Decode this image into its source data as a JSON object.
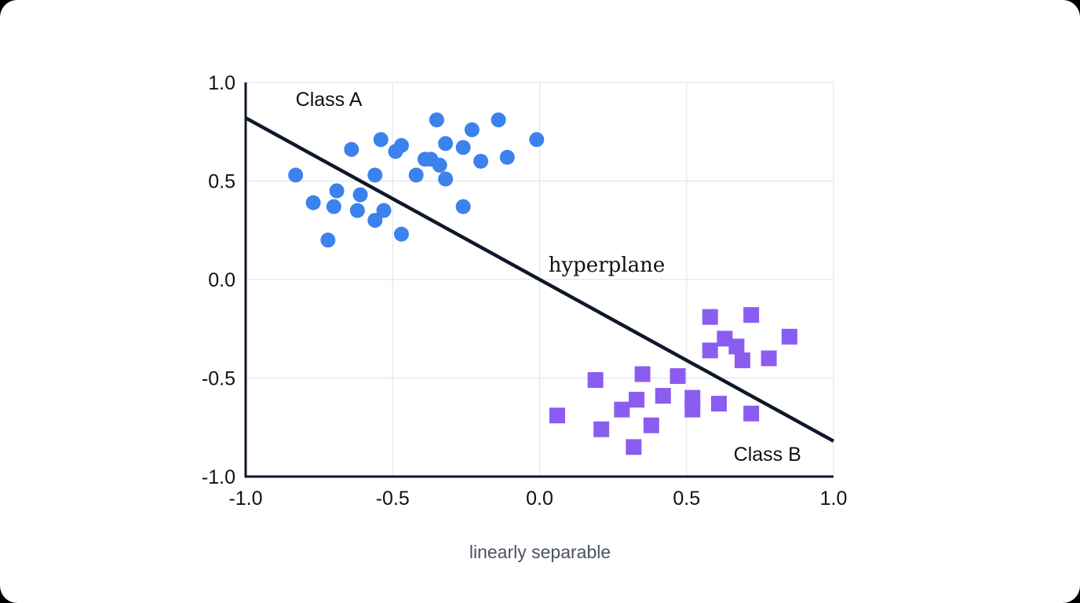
{
  "chart_data": {
    "type": "scatter",
    "xlabel": "linearly separable",
    "xlim": [
      -1.0,
      1.0
    ],
    "ylim": [
      -1.0,
      1.0
    ],
    "xticks": [
      "-1.0",
      "-0.5",
      "0.0",
      "0.5",
      "1.0"
    ],
    "yticks": [
      "1.0",
      "0.5",
      "0.0",
      "-0.5",
      "-1.0"
    ],
    "grid": true,
    "series": [
      {
        "name": "Class A",
        "marker": "circle",
        "color": "#3b82ed",
        "points": [
          [
            -0.83,
            0.53
          ],
          [
            -0.64,
            0.66
          ],
          [
            -0.54,
            0.71
          ],
          [
            -0.49,
            0.65
          ],
          [
            -0.47,
            0.68
          ],
          [
            -0.35,
            0.81
          ],
          [
            -0.23,
            0.76
          ],
          [
            -0.14,
            0.81
          ],
          [
            -0.01,
            0.71
          ],
          [
            -0.32,
            0.69
          ],
          [
            -0.26,
            0.67
          ],
          [
            -0.2,
            0.6
          ],
          [
            -0.11,
            0.62
          ],
          [
            -0.39,
            0.61
          ],
          [
            -0.37,
            0.61
          ],
          [
            -0.34,
            0.58
          ],
          [
            -0.42,
            0.53
          ],
          [
            -0.32,
            0.51
          ],
          [
            -0.56,
            0.53
          ],
          [
            -0.69,
            0.45
          ],
          [
            -0.61,
            0.43
          ],
          [
            -0.77,
            0.39
          ],
          [
            -0.7,
            0.37
          ],
          [
            -0.62,
            0.35
          ],
          [
            -0.53,
            0.35
          ],
          [
            -0.56,
            0.3
          ],
          [
            -0.26,
            0.37
          ],
          [
            -0.72,
            0.2
          ],
          [
            -0.47,
            0.23
          ]
        ]
      },
      {
        "name": "Class B",
        "marker": "square",
        "color": "#8b5cf0",
        "points": [
          [
            0.58,
            -0.19
          ],
          [
            0.72,
            -0.18
          ],
          [
            0.63,
            -0.3
          ],
          [
            0.67,
            -0.34
          ],
          [
            0.58,
            -0.36
          ],
          [
            0.69,
            -0.41
          ],
          [
            0.78,
            -0.4
          ],
          [
            0.85,
            -0.29
          ],
          [
            0.19,
            -0.51
          ],
          [
            0.35,
            -0.48
          ],
          [
            0.47,
            -0.49
          ],
          [
            0.52,
            -0.6
          ],
          [
            0.52,
            -0.66
          ],
          [
            0.42,
            -0.59
          ],
          [
            0.33,
            -0.61
          ],
          [
            0.28,
            -0.66
          ],
          [
            0.61,
            -0.63
          ],
          [
            0.72,
            -0.68
          ],
          [
            0.06,
            -0.69
          ],
          [
            0.21,
            -0.76
          ],
          [
            0.38,
            -0.74
          ],
          [
            0.32,
            -0.85
          ]
        ]
      }
    ],
    "line": {
      "name": "hyperplane",
      "color": "#0f1729",
      "points": [
        [
          -1.0,
          0.82
        ],
        [
          1.0,
          -0.82
        ]
      ]
    },
    "annotations": [
      {
        "text": "Class A",
        "at": [
          -0.83,
          0.88
        ]
      },
      {
        "text": "hyperplane",
        "at": [
          0.03,
          0.04
        ]
      },
      {
        "text": "Class B",
        "at": [
          0.66,
          -0.92
        ]
      }
    ]
  }
}
